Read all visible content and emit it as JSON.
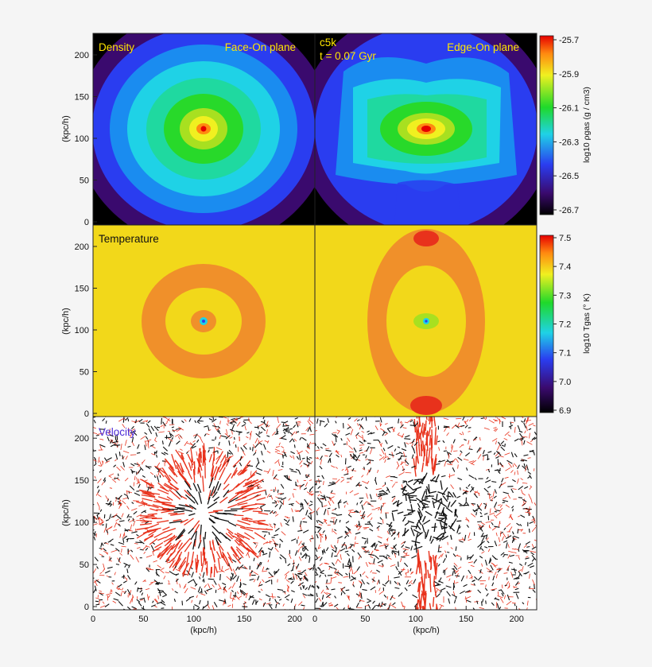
{
  "figure": {
    "run_label": "c5k",
    "time_label": "t = 0.07 Gyr",
    "panel_titles": {
      "density": "Density",
      "temperature": "Temperature",
      "velocity": "Velocity"
    },
    "plane_titles": {
      "face": "Face-On plane",
      "edge": "Edge-On plane"
    },
    "y_axis_label": "(kpc/h)",
    "x_axis_label": "(kpc/h)"
  },
  "colors": {
    "outflow_arrows": "#e8321c",
    "inflow_arrows": "#111111",
    "title_yellow": "#ffe600",
    "velocity_title": "#4b2bd6"
  },
  "chart_data": [
    {
      "type": "heatmap",
      "name": "Density",
      "xlim": [
        0,
        220
      ],
      "ylim": [
        0,
        220
      ],
      "x_ticks": [
        0,
        50,
        100,
        150,
        200
      ],
      "y_ticks": [
        0,
        50,
        100,
        150,
        200
      ],
      "colorbar": {
        "label": "log10 ρgas (g / cm3)",
        "ticks": [
          -25.7,
          -25.9,
          -26.1,
          -26.3,
          -26.5,
          -26.7
        ],
        "range": [
          -26.7,
          -25.7
        ]
      },
      "panels": [
        "Face-On plane",
        "Edge-On plane"
      ],
      "center": [
        110,
        110
      ]
    },
    {
      "type": "heatmap",
      "name": "Temperature",
      "xlim": [
        0,
        220
      ],
      "ylim": [
        0,
        220
      ],
      "x_ticks": [
        0,
        50,
        100,
        150,
        200
      ],
      "y_ticks": [
        0,
        50,
        100,
        150,
        200
      ],
      "colorbar": {
        "label": "log10 Tgas (° K)",
        "ticks": [
          7.5,
          7.4,
          7.3,
          7.2,
          7.1,
          7.0,
          6.9
        ],
        "range": [
          6.9,
          7.5
        ]
      },
      "center": [
        110,
        110
      ]
    },
    {
      "type": "scatter",
      "name": "Velocity",
      "xlim": [
        0,
        220
      ],
      "ylim": [
        0,
        220
      ],
      "x_ticks": [
        0,
        50,
        100,
        150,
        200
      ],
      "y_ticks": [
        0,
        50,
        100,
        150,
        200
      ],
      "x_tick_labels": [
        "0",
        "50",
        "100",
        "150",
        "200"
      ],
      "center": [
        110,
        110
      ]
    }
  ]
}
